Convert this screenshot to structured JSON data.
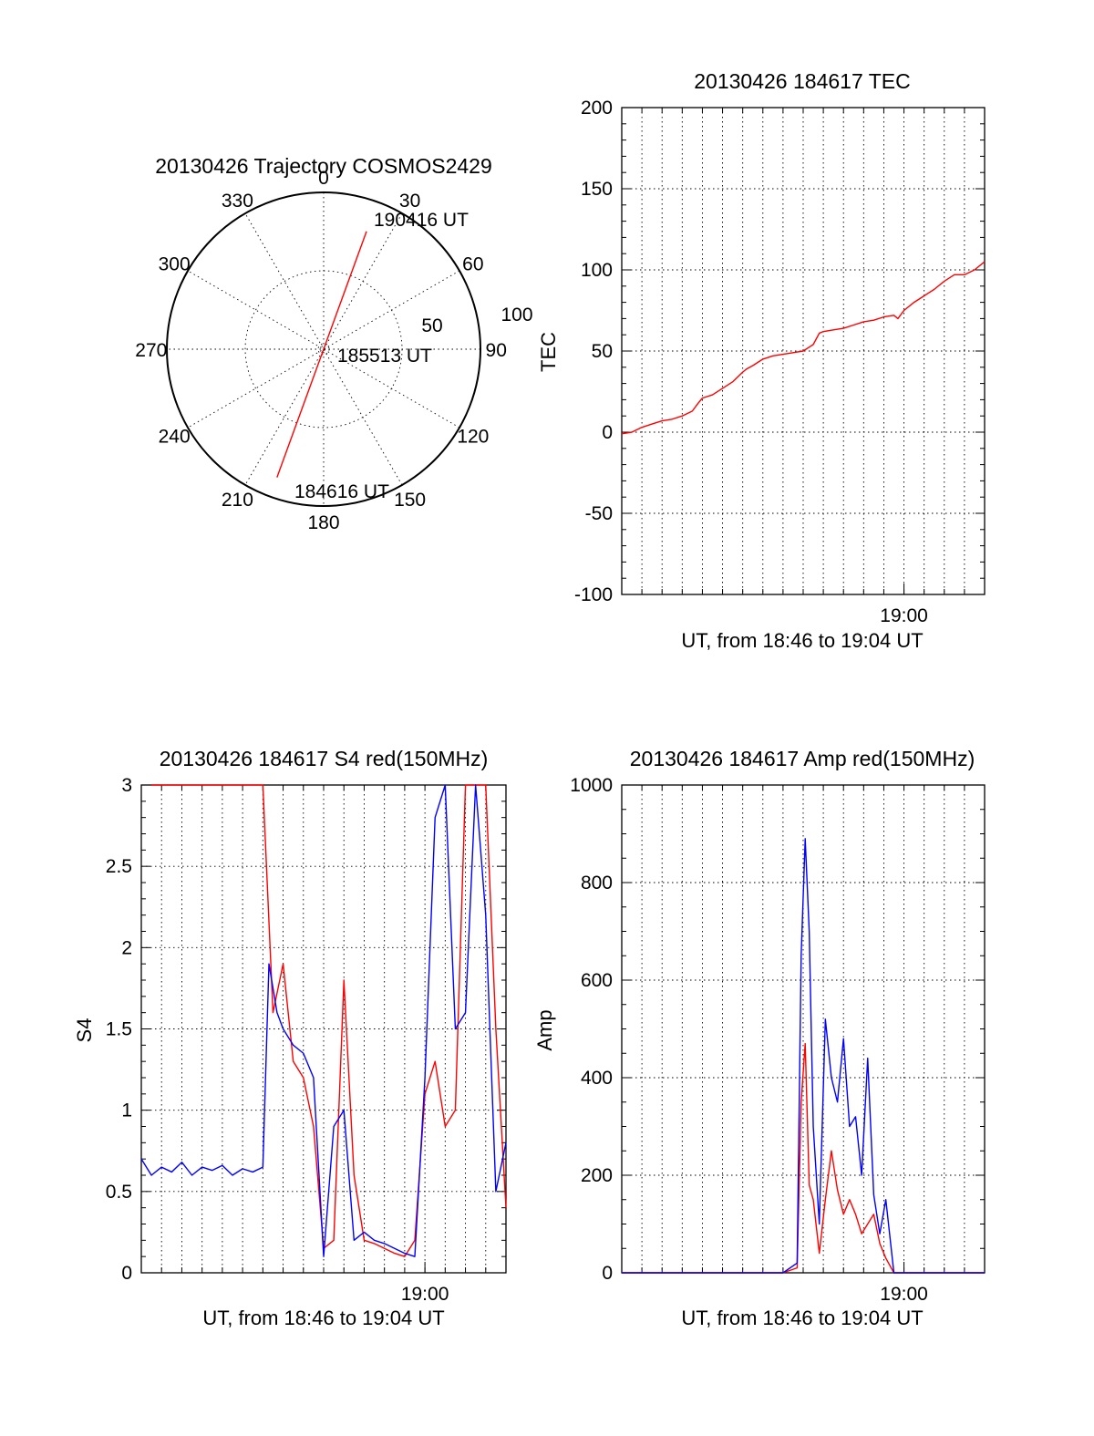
{
  "chart_data": [
    {
      "id": "trajectory",
      "type": "polar",
      "title": "20130426 Trajectory COSMOS2429",
      "azimuth_labels": [
        "0",
        "30",
        "60",
        "90",
        "120",
        "150",
        "180",
        "210",
        "240",
        "270",
        "300",
        "330"
      ],
      "radius_labels": [
        "50",
        "100"
      ],
      "rlim": [
        0,
        100
      ],
      "grid": true,
      "series": [
        {
          "color": "#ff0000",
          "points": [
            {
              "az": 20,
              "r": 80
            },
            {
              "az": 200,
              "r": 87
            }
          ]
        }
      ],
      "annotations": [
        {
          "text": "190416 UT",
          "az": 20,
          "r": 80
        },
        {
          "text": "185513 UT",
          "az": 90,
          "r": 10
        },
        {
          "text": "184616 UT",
          "az": 195,
          "r": 90
        }
      ]
    },
    {
      "id": "tec",
      "type": "line",
      "title": "20130426 184617 TEC",
      "xlabel": "UT, from 18:46 to 19:04 UT",
      "ylabel": "TEC",
      "x_tick_labels": [
        "19:00"
      ],
      "x_ticks_min": [
        14
      ],
      "xlim_min": [
        0,
        18
      ],
      "ylim": [
        -100,
        200
      ],
      "y_ticks": [
        -100,
        -50,
        0,
        50,
        100,
        150,
        200
      ],
      "grid": true,
      "series": [
        {
          "color": "#ff0000",
          "x_min": [
            0,
            0.5,
            1.0,
            1.5,
            2.0,
            2.5,
            3.0,
            3.5,
            3.8,
            4.0,
            4.5,
            5.0,
            5.5,
            6.0,
            6.2,
            6.5,
            7.0,
            7.5,
            8.0,
            8.5,
            9.0,
            9.5,
            9.8,
            10.0,
            10.5,
            11.0,
            11.5,
            12.0,
            12.5,
            13.0,
            13.5,
            13.7,
            14.0,
            14.5,
            15.0,
            15.5,
            16.0,
            16.5,
            17.0,
            17.5,
            18.0
          ],
          "y": [
            -1,
            0,
            3,
            5,
            7,
            8,
            10,
            13,
            18,
            21,
            23,
            27,
            31,
            37,
            39,
            41,
            45,
            47,
            48,
            49,
            50,
            54,
            61,
            62,
            63,
            64,
            66,
            68,
            69,
            71,
            72,
            70,
            75,
            80,
            84,
            88,
            93,
            97,
            97,
            100,
            105
          ]
        }
      ]
    },
    {
      "id": "s4",
      "type": "line",
      "title": "20130426 184617 S4 red(150MHz)",
      "xlabel": "UT, from 18:46 to 19:04 UT",
      "ylabel": "S4",
      "x_tick_labels": [
        "19:00"
      ],
      "x_ticks_min": [
        14
      ],
      "xlim_min": [
        0,
        18
      ],
      "ylim": [
        0,
        3
      ],
      "y_ticks": [
        0,
        0.5,
        1,
        1.5,
        2,
        2.5,
        3
      ],
      "y_tick_labels": [
        "0",
        "0.5",
        "1",
        "1.5",
        "2",
        "2.5",
        "3"
      ],
      "grid": true,
      "series": [
        {
          "color": "#ff0000",
          "x_min": [
            0.5,
            1.5,
            2.5,
            3.5,
            4.5,
            5.5,
            6.0,
            6.5,
            7.0,
            7.5,
            8.0,
            8.5,
            9.0,
            9.5,
            10.0,
            10.5,
            11.0,
            11.5,
            12.0,
            12.5,
            13.0,
            13.5,
            14.0,
            14.5,
            15.0,
            15.5,
            16.0,
            16.5,
            17.0,
            17.5,
            18.0
          ],
          "y": [
            3.0,
            3.0,
            3.0,
            3.0,
            3.0,
            3.0,
            3.0,
            1.6,
            1.9,
            1.3,
            1.2,
            0.9,
            0.15,
            0.2,
            1.8,
            0.6,
            0.2,
            0.18,
            0.15,
            0.12,
            0.1,
            0.2,
            1.1,
            1.3,
            0.9,
            1.0,
            3.0,
            3.0,
            3.0,
            1.5,
            0.4
          ]
        },
        {
          "color": "#0000ff",
          "x_min": [
            0,
            0.5,
            1.0,
            1.5,
            2.0,
            2.5,
            3.0,
            3.5,
            4.0,
            4.5,
            5.0,
            5.5,
            6.0,
            6.3,
            6.7,
            7.0,
            7.5,
            8.0,
            8.5,
            9.0,
            9.5,
            10.0,
            10.5,
            11.0,
            11.5,
            12.0,
            12.5,
            13.0,
            13.5,
            14.0,
            14.5,
            15.0,
            15.5,
            16.0,
            16.5,
            17.0,
            17.5,
            18.0
          ],
          "y": [
            0.7,
            0.6,
            0.65,
            0.62,
            0.68,
            0.6,
            0.65,
            0.63,
            0.66,
            0.6,
            0.64,
            0.62,
            0.65,
            1.9,
            1.6,
            1.5,
            1.4,
            1.35,
            1.2,
            0.1,
            0.9,
            1.0,
            0.2,
            0.25,
            0.2,
            0.18,
            0.15,
            0.12,
            0.1,
            1.2,
            2.8,
            3.0,
            1.5,
            1.6,
            3.0,
            2.2,
            0.5,
            0.8
          ]
        }
      ]
    },
    {
      "id": "amp",
      "type": "line",
      "title": "20130426 184617 Amp red(150MHz)",
      "xlabel": "UT, from 18:46 to 19:04 UT",
      "ylabel": "Amp",
      "x_tick_labels": [
        "19:00"
      ],
      "x_ticks_min": [
        14
      ],
      "xlim_min": [
        0,
        18
      ],
      "ylim": [
        0,
        1000
      ],
      "y_ticks": [
        0,
        200,
        400,
        600,
        800,
        1000
      ],
      "grid": true,
      "series": [
        {
          "color": "#ff0000",
          "x_min": [
            0,
            2,
            4,
            6,
            8,
            8.7,
            8.9,
            9.1,
            9.3,
            9.5,
            9.8,
            10.1,
            10.4,
            10.7,
            11.0,
            11.3,
            11.6,
            11.9,
            12.2,
            12.5,
            12.8,
            13.1,
            13.5,
            14,
            16,
            18
          ],
          "y": [
            0,
            0,
            0,
            0,
            0,
            10,
            350,
            470,
            180,
            150,
            40,
            150,
            250,
            170,
            120,
            150,
            120,
            80,
            100,
            120,
            60,
            30,
            0,
            0,
            0,
            0
          ]
        },
        {
          "color": "#0000ff",
          "x_min": [
            0,
            2,
            4,
            6,
            8,
            8.7,
            8.9,
            9.1,
            9.3,
            9.5,
            9.8,
            10.1,
            10.4,
            10.7,
            11.0,
            11.3,
            11.6,
            11.9,
            12.2,
            12.5,
            12.8,
            13.1,
            13.5,
            14,
            16,
            18
          ],
          "y": [
            0,
            0,
            0,
            0,
            0,
            20,
            650,
            890,
            700,
            300,
            100,
            520,
            400,
            350,
            480,
            300,
            320,
            200,
            440,
            160,
            80,
            150,
            0,
            0,
            0,
            0
          ]
        }
      ]
    }
  ]
}
